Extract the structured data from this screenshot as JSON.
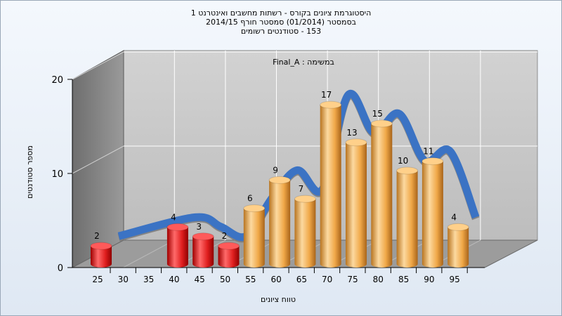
{
  "header": {
    "line1": "היסטוגרמת ציונים בקורס - רשתות מחשבים ואינטרנט 1",
    "line2": "בסמסטר  (01/2014)  סמסטר חורף 2014/15",
    "line3": "153 - סטודנטים רשומים"
  },
  "chart_data": {
    "type": "bar",
    "annotation": "במשימה : Final_A",
    "xlabel": "טווח ציונים",
    "ylabel": "מספר סטודנטים",
    "x_ticks": [
      "25",
      "30",
      "35",
      "40",
      "45",
      "50",
      "55",
      "60",
      "65",
      "70",
      "75",
      "80",
      "85",
      "90",
      "95"
    ],
    "y_ticks": [
      "0",
      "10",
      "20"
    ],
    "ylim": [
      0,
      20
    ],
    "grid": true,
    "colors": {
      "fail": "#e01f1f",
      "pass": "#f0a848",
      "curve": "#3b73c4",
      "curve_shadow": "#7a7a7a"
    },
    "bars": [
      {
        "x": 25,
        "value": 2,
        "status": "fail"
      },
      {
        "x": 40,
        "value": 4,
        "status": "fail"
      },
      {
        "x": 45,
        "value": 3,
        "status": "fail"
      },
      {
        "x": 50,
        "value": 2,
        "status": "fail"
      },
      {
        "x": 55,
        "value": 6,
        "status": "pass"
      },
      {
        "x": 60,
        "value": 9,
        "status": "pass"
      },
      {
        "x": 65,
        "value": 7,
        "status": "pass"
      },
      {
        "x": 70,
        "value": 17,
        "status": "pass"
      },
      {
        "x": 75,
        "value": 13,
        "status": "pass"
      },
      {
        "x": 80,
        "value": 15,
        "status": "pass"
      },
      {
        "x": 85,
        "value": 10,
        "status": "pass"
      },
      {
        "x": 90,
        "value": 11,
        "status": "pass"
      },
      {
        "x": 95,
        "value": 4,
        "status": "pass"
      }
    ]
  }
}
